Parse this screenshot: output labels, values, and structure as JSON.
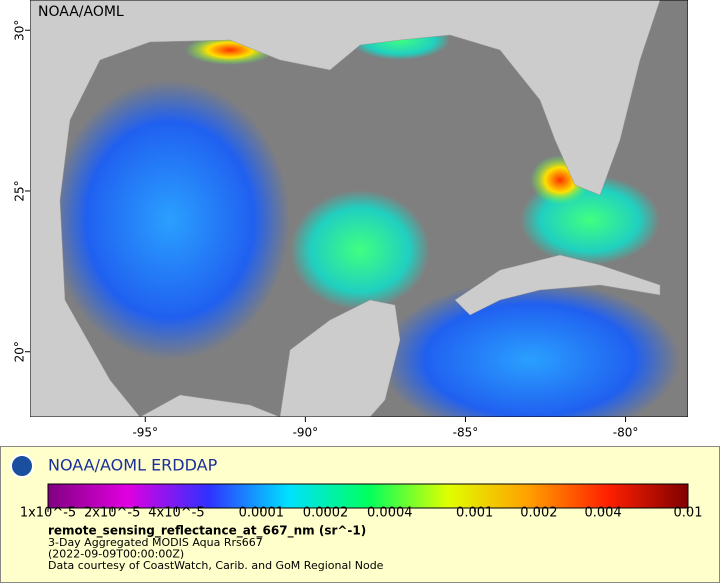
{
  "map": {
    "label": "NOAA/AOML",
    "xlim": [
      -98.6,
      -78.05
    ],
    "ylim": [
      17.97,
      30.94
    ],
    "xticks": [
      {
        "value": -95,
        "label": "-95°"
      },
      {
        "value": -90,
        "label": "-90°"
      },
      {
        "value": -85,
        "label": "-85°"
      },
      {
        "value": -80,
        "label": "-80°"
      }
    ],
    "yticks": [
      {
        "value": 30,
        "label": "30°"
      },
      {
        "value": 25,
        "label": "25°"
      },
      {
        "value": 20,
        "label": "20°"
      }
    ]
  },
  "legend": {
    "title": "NOAA/AOML ERDDAP",
    "colorbar": {
      "log": true,
      "xlim": [
        1e-05,
        0.01
      ],
      "colors": [
        "#800080",
        "#e000e0",
        "#3030ff",
        "#00e0ff",
        "#00ff60",
        "#e0ff00",
        "#ffa000",
        "#ff2000",
        "#800000"
      ],
      "ticks": [
        {
          "value": 1e-05,
          "label": "1x10^-5"
        },
        {
          "value": 2e-05,
          "label": "2x10^-5"
        },
        {
          "value": 4e-05,
          "label": "4x10^-5"
        },
        {
          "value": 0.0001,
          "label": "0.0001"
        },
        {
          "value": 0.0002,
          "label": "0.0002"
        },
        {
          "value": 0.0004,
          "label": "0.0004"
        },
        {
          "value": 0.001,
          "label": "0.001"
        },
        {
          "value": 0.002,
          "label": "0.002"
        },
        {
          "value": 0.004,
          "label": "0.004"
        },
        {
          "value": 0.01,
          "label": "0.01"
        }
      ]
    },
    "variable": "remote_sensing_reflectance_at_667_nm (sr^-1)",
    "lines": [
      "3-Day Aggregated MODIS Aqua Rrs667",
      "(2022-09-09T00:00:00Z)",
      "Data courtesy of CoastWatch, Carib. and GoM Regional Node"
    ]
  }
}
